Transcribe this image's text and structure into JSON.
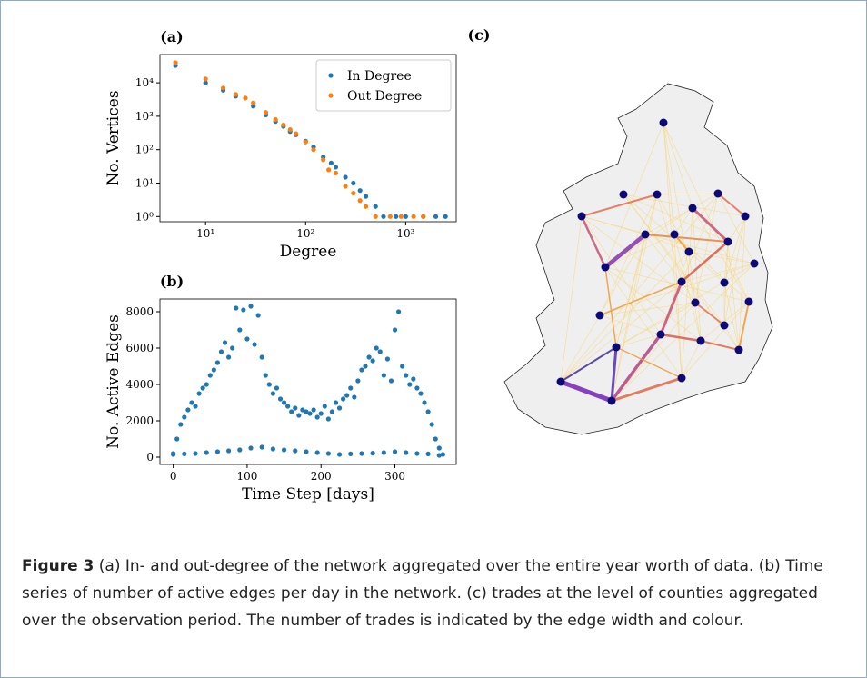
{
  "chart_data": [
    {
      "type": "scatter",
      "title": "(a)",
      "xlabel": "Degree",
      "ylabel": "No. Vertices",
      "logx": true,
      "logy": true,
      "legend": "upper right",
      "xlim": [
        3.5,
        3200
      ],
      "ylim": [
        0.7,
        70000
      ],
      "xticks": [
        {
          "value": 10,
          "label": "10¹"
        },
        {
          "value": 100,
          "label": "10²"
        },
        {
          "value": 1000,
          "label": "10³"
        }
      ],
      "yticks": [
        {
          "value": 1,
          "label": "10⁰"
        },
        {
          "value": 10,
          "label": "10¹"
        },
        {
          "value": 100,
          "label": "10²"
        },
        {
          "value": 1000,
          "label": "10³"
        },
        {
          "value": 10000,
          "label": "10⁴"
        }
      ],
      "series": [
        {
          "name": "In Degree",
          "color": "#1f77b4",
          "x": [
            5,
            10,
            15,
            20,
            30,
            40,
            50,
            60,
            70,
            80,
            100,
            120,
            150,
            180,
            200,
            250,
            300,
            350,
            400,
            500,
            600,
            800,
            1000,
            1500,
            2000,
            2500
          ],
          "values": [
            33000,
            10000,
            6000,
            4000,
            2000,
            1100,
            700,
            500,
            350,
            280,
            180,
            120,
            60,
            40,
            30,
            15,
            10,
            6,
            4,
            2,
            1,
            1,
            1,
            1,
            1,
            1
          ]
        },
        {
          "name": "Out Degree",
          "color": "#ff7f0e",
          "x": [
            5,
            10,
            15,
            20,
            25,
            30,
            40,
            50,
            60,
            70,
            80,
            100,
            120,
            150,
            170,
            200,
            250,
            300,
            350,
            400,
            500,
            700,
            900,
            1200,
            1500
          ],
          "values": [
            40000,
            13000,
            7000,
            4500,
            3500,
            2500,
            1300,
            800,
            550,
            400,
            300,
            170,
            100,
            50,
            25,
            20,
            8,
            5,
            3,
            2,
            1,
            1,
            1,
            1,
            1
          ]
        }
      ]
    },
    {
      "type": "scatter",
      "title": "(b)",
      "xlabel": "Time Step [days]",
      "ylabel": "No. Active Edges",
      "xlim": [
        -18,
        383
      ],
      "ylim": [
        -400,
        8700
      ],
      "xticks": [
        0,
        100,
        200,
        300
      ],
      "yticks": [
        0,
        2000,
        4000,
        6000,
        8000
      ],
      "series": [
        {
          "color": "#1f77b4",
          "x": [
            0,
            5,
            10,
            15,
            20,
            25,
            30,
            35,
            40,
            45,
            50,
            55,
            60,
            65,
            70,
            75,
            80,
            85,
            90,
            95,
            100,
            105,
            110,
            115,
            120,
            125,
            130,
            135,
            140,
            145,
            150,
            155,
            160,
            165,
            170,
            175,
            180,
            185,
            190,
            195,
            200,
            205,
            210,
            215,
            220,
            225,
            230,
            235,
            240,
            245,
            250,
            255,
            260,
            265,
            270,
            275,
            280,
            285,
            290,
            295,
            300,
            305,
            310,
            315,
            320,
            325,
            330,
            335,
            340,
            345,
            350,
            355,
            360,
            365
          ],
          "values": [
            200,
            1000,
            1800,
            2200,
            2600,
            3000,
            2800,
            3500,
            3800,
            4000,
            4500,
            4800,
            5200,
            5800,
            6300,
            5500,
            6000,
            8200,
            7000,
            8100,
            6500,
            8300,
            6200,
            7800,
            5500,
            4500,
            4000,
            3500,
            3800,
            3200,
            3000,
            2800,
            2500,
            2700,
            2300,
            2600,
            2500,
            2400,
            2600,
            2200,
            2400,
            2800,
            2100,
            2500,
            3000,
            2700,
            3200,
            3400,
            3800,
            3300,
            4200,
            4800,
            5000,
            5500,
            5300,
            6000,
            5800,
            4500,
            5400,
            4200,
            7000,
            8000,
            5000,
            4500,
            4000,
            4300,
            3800,
            3500,
            3000,
            2500,
            1800,
            1000,
            500,
            150
          ]
        },
        {
          "color": "#1f77b4",
          "x": [
            0,
            15,
            30,
            45,
            60,
            75,
            90,
            105,
            120,
            135,
            150,
            165,
            180,
            195,
            210,
            225,
            240,
            255,
            270,
            285,
            300,
            315,
            330,
            345,
            360
          ],
          "values": [
            150,
            180,
            200,
            250,
            300,
            350,
            400,
            500,
            550,
            450,
            400,
            350,
            300,
            250,
            200,
            150,
            180,
            200,
            220,
            250,
            300,
            250,
            200,
            180,
            100
          ]
        }
      ]
    }
  ],
  "map": {
    "label": "(c)"
  },
  "caption": {
    "label": "Figure 3",
    "text": "(a) In- and out-degree of the network aggregated over the entire year worth of data. (b) Time series of number of active edges per day in the network. (c) trades at the level of counties aggregated over the observation period. The number of trades is indicated by the edge width and colour."
  }
}
